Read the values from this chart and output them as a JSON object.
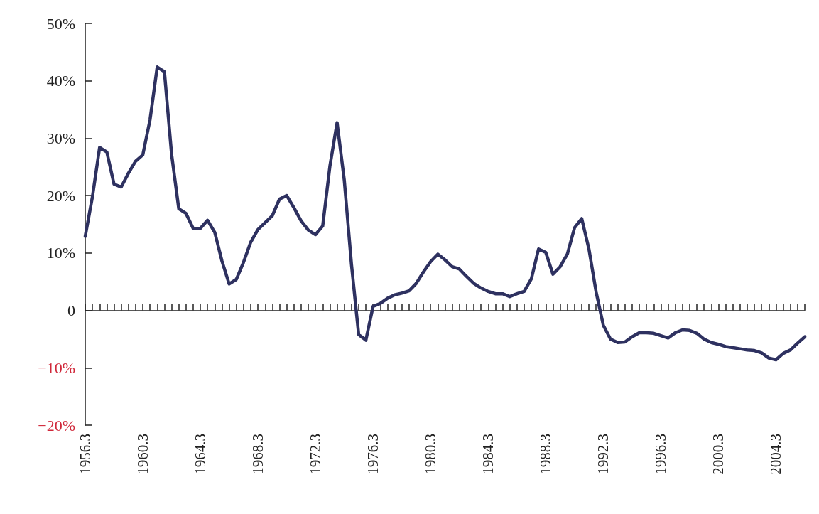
{
  "chart_data": {
    "type": "line",
    "categories": [
      "1956.3",
      null,
      null,
      null,
      null,
      null,
      null,
      null,
      "1960.3",
      null,
      null,
      null,
      null,
      null,
      null,
      null,
      "1964.3",
      null,
      null,
      null,
      null,
      null,
      null,
      null,
      "1968.3",
      null,
      null,
      null,
      null,
      null,
      null,
      null,
      "1972.3",
      null,
      null,
      null,
      null,
      null,
      null,
      null,
      "1976.3",
      null,
      null,
      null,
      null,
      null,
      null,
      null,
      "1980.3",
      null,
      null,
      null,
      null,
      null,
      null,
      null,
      "1984.3",
      null,
      null,
      null,
      null,
      null,
      null,
      null,
      "1988.3",
      null,
      null,
      null,
      null,
      null,
      null,
      null,
      "1992.3",
      null,
      null,
      null,
      null,
      null,
      null,
      null,
      "1996.3",
      null,
      null,
      null,
      null,
      null,
      null,
      null,
      "2000.3",
      null,
      null,
      null,
      null,
      null,
      null,
      null,
      "2004.3",
      null,
      null,
      null,
      null
    ],
    "series": [
      {
        "color": "#2e3160",
        "values": [
          12.9,
          19.8,
          28.4,
          27.6,
          22.0,
          21.5,
          23.9,
          26.0,
          27.1,
          33.2,
          42.4,
          41.6,
          27.2,
          17.7,
          16.9,
          14.3,
          14.3,
          15.7,
          13.6,
          8.6,
          4.6,
          5.4,
          8.4,
          11.9,
          14.1,
          15.3,
          16.5,
          19.4,
          20.0,
          17.9,
          15.6,
          14.0,
          13.2,
          14.7,
          25.1,
          32.7,
          22.7,
          8.0,
          -4.2,
          -5.2,
          0.7,
          1.2,
          2.1,
          2.7,
          3.0,
          3.4,
          4.7,
          6.7,
          8.5,
          9.8,
          8.8,
          7.6,
          7.2,
          5.9,
          4.7,
          3.9,
          3.3,
          2.9,
          2.9,
          2.4,
          2.9,
          3.3,
          5.5,
          10.7,
          10.1,
          6.3,
          7.6,
          9.8,
          14.4,
          16.0,
          10.7,
          3.2,
          -2.6,
          -5.0,
          -5.6,
          -5.5,
          -4.6,
          -3.9,
          -3.9,
          -4.0,
          -4.4,
          -4.8,
          -3.9,
          -3.4,
          -3.5,
          -4.0,
          -5.0,
          -5.6,
          -5.9,
          -6.3,
          -6.5,
          -6.7,
          -6.9,
          -7.0,
          -7.4,
          -8.3,
          -8.6,
          -7.5,
          -6.9,
          -5.7,
          -4.6
        ]
      }
    ],
    "ylim": [
      -20,
      50
    ],
    "yticks": [
      {
        "value": -20,
        "label": "−20%"
      },
      {
        "value": -10,
        "label": "−10%"
      },
      0,
      {
        "value": 10,
        "label": "10%"
      },
      {
        "value": 20,
        "label": "20%"
      },
      {
        "value": 30,
        "label": "30%"
      },
      {
        "value": 40,
        "label": "40%"
      },
      {
        "value": 50,
        "label": "50%"
      }
    ],
    "marker": "none",
    "line_style": "solid"
  }
}
